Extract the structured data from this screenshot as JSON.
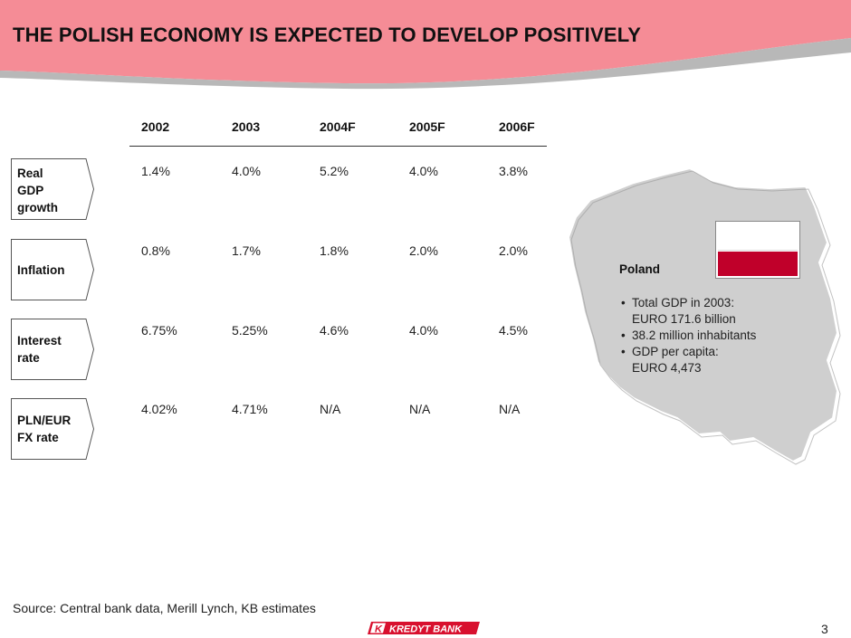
{
  "title": "THE POLISH ECONOMY IS EXPECTED TO DEVELOP POSITIVELY",
  "years": [
    "2002",
    "2003",
    "2004F",
    "2005F",
    "2006F"
  ],
  "rows": [
    {
      "label": "Real\nGDP\ngrowth",
      "values": [
        "1.4%",
        "4.0%",
        "5.2%",
        "4.0%",
        "3.8%"
      ]
    },
    {
      "label": "Inflation",
      "values": [
        "0.8%",
        "1.7%",
        "1.8%",
        "2.0%",
        "2.0%"
      ]
    },
    {
      "label": "Interest\nrate",
      "values": [
        "6.75%",
        "5.25%",
        "4.6%",
        "4.0%",
        "4.5%"
      ]
    },
    {
      "label": "PLN/EUR\nFX rate",
      "values": [
        "4.02%",
        "4.71%",
        "N/A",
        "N/A",
        "N/A"
      ]
    }
  ],
  "poland": {
    "title": "Poland",
    "facts": [
      "Total GDP in 2003:\nEURO 171.6 billion",
      "38.2 million inhabitants",
      "GDP per capita:\nEURO 4,473"
    ]
  },
  "source": "Source:  Central bank data, Merill Lynch, KB estimates",
  "logo_text": "KREDYT BANK",
  "page_number": "3",
  "colors": {
    "banner": "#f58c96",
    "banner_shadow": "#b8b8b8",
    "map_fill": "#cfcfcf",
    "flag_red": "#c0002a",
    "logo_red": "#d8102e"
  }
}
